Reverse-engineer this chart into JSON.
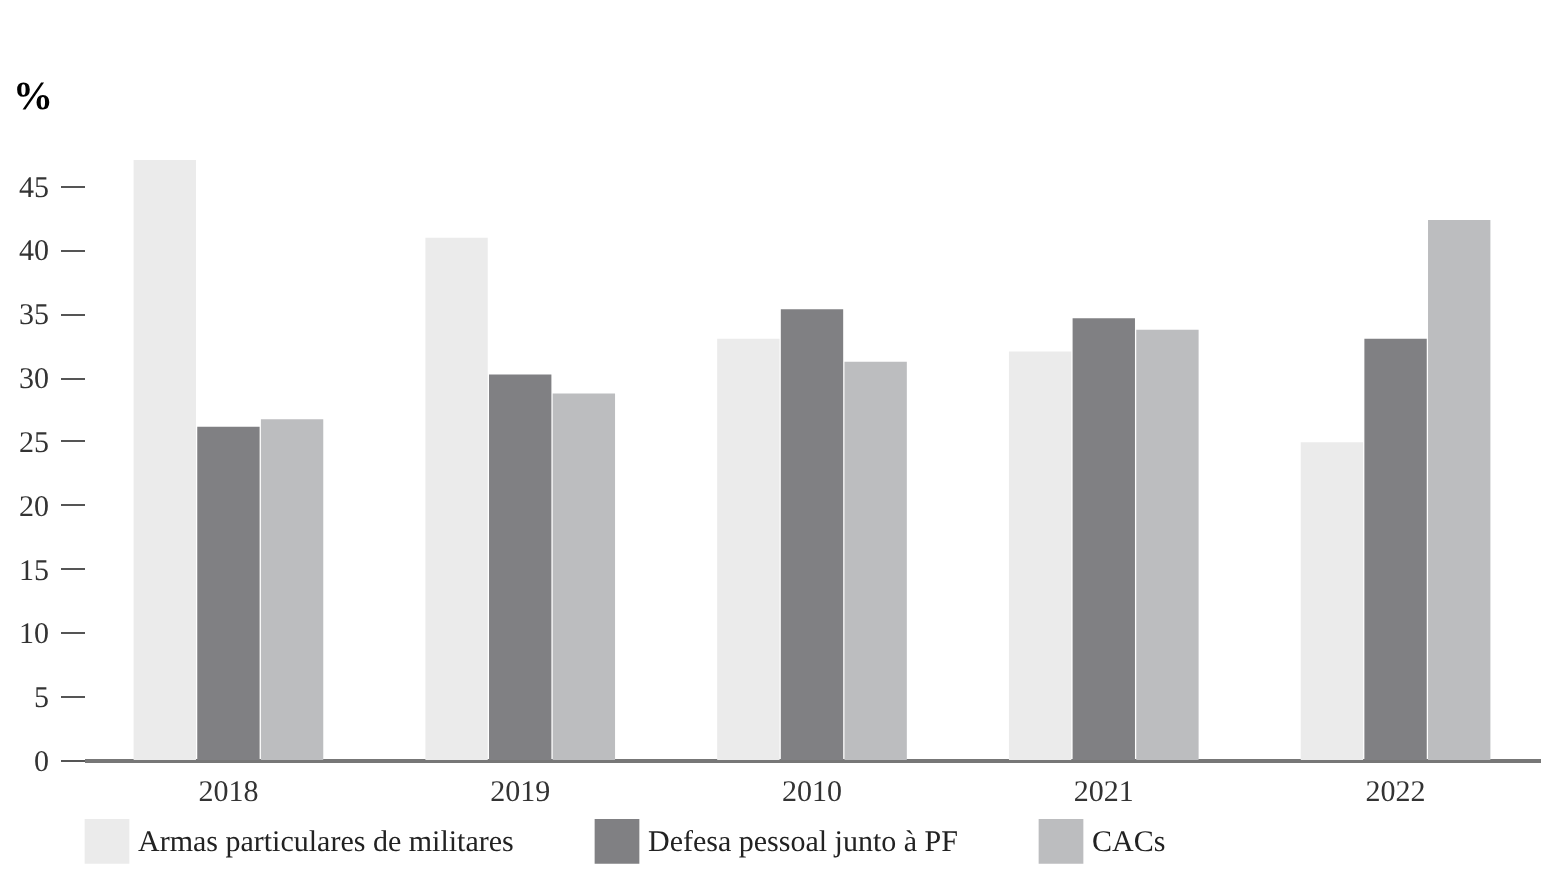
{
  "chart_data": {
    "type": "bar",
    "ylabel": "%",
    "categories": [
      "2018",
      "2019",
      "2010",
      "2021",
      "2022"
    ],
    "series": [
      {
        "name": "Armas particulares de militares",
        "color": "#ebebeb",
        "values": [
          47,
          40.9,
          33.0,
          32.0,
          24.9
        ]
      },
      {
        "name": "Defesa pessoal junto à PF",
        "color": "#808083",
        "values": [
          26.1,
          30.2,
          35.3,
          34.6,
          33.0
        ]
      },
      {
        "name": "CACs",
        "color": "#bcbdbf",
        "values": [
          26.7,
          28.7,
          31.2,
          33.7,
          42.3
        ]
      }
    ],
    "ylim": [
      0,
      47
    ],
    "yticks": [
      0,
      5,
      10,
      15,
      20,
      25,
      30,
      35,
      40,
      45
    ],
    "grid": false,
    "legend": "bottom"
  }
}
